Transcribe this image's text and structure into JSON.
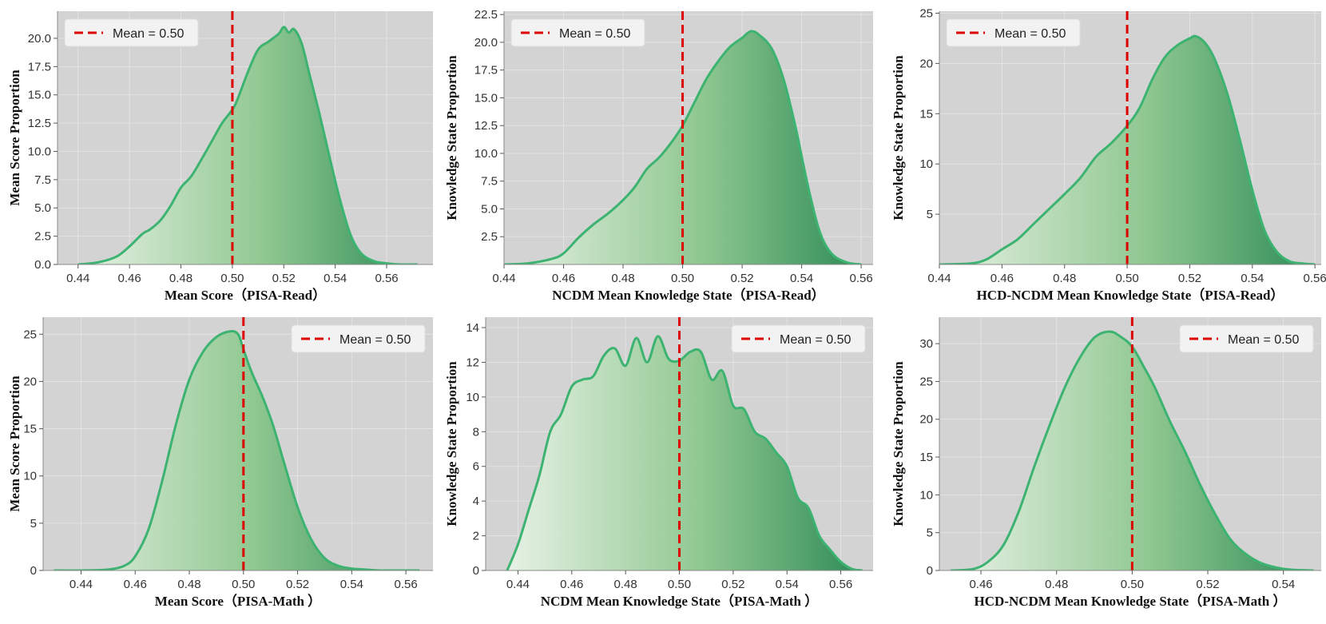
{
  "colors": {
    "panel_bg": "#d3d3d3",
    "grid": "#e6e6e6",
    "fill_light": "#e8f3e6",
    "fill_dark": "#2e8b57",
    "curve": "#3cb371",
    "mean_line": "#dd0000"
  },
  "chart_data": [
    {
      "type": "area",
      "xlabel": "Mean Score（PISA-Read）",
      "ylabel": "Mean Score Proportion",
      "xlim": [
        0.432,
        0.578
      ],
      "ylim": [
        0,
        22.4
      ],
      "xticks": [
        "0.44",
        "0.46",
        "0.48",
        "0.50",
        "0.52",
        "0.54",
        "0.56"
      ],
      "yticks": [
        "0.0",
        "2.5",
        "5.0",
        "7.5",
        "10.0",
        "12.5",
        "15.0",
        "17.5",
        "20.0"
      ],
      "legend": {
        "label": "Mean = 0.50",
        "position": "top-left"
      },
      "mean": 0.5,
      "grid": true,
      "x": [
        0.44,
        0.448,
        0.455,
        0.46,
        0.465,
        0.468,
        0.472,
        0.476,
        0.48,
        0.484,
        0.488,
        0.492,
        0.496,
        0.5,
        0.502,
        0.506,
        0.51,
        0.514,
        0.518,
        0.52,
        0.522,
        0.524,
        0.527,
        0.53,
        0.534,
        0.538,
        0.542,
        0.546,
        0.55,
        0.555,
        0.56,
        0.565,
        0.572
      ],
      "y": [
        0.0,
        0.2,
        0.7,
        1.6,
        2.7,
        3.1,
        3.9,
        5.2,
        6.8,
        7.8,
        9.3,
        10.9,
        12.5,
        13.7,
        14.6,
        17.0,
        19.0,
        19.7,
        20.4,
        21.0,
        20.5,
        20.8,
        19.5,
        16.8,
        13.2,
        9.3,
        5.6,
        2.6,
        1.0,
        0.3,
        0.1,
        0.0,
        0.0
      ]
    },
    {
      "type": "area",
      "xlabel": "NCDM Mean Knowledge State（PISA-Read）",
      "ylabel": "Knowledge State Proportion",
      "xlim": [
        0.44,
        0.564
      ],
      "ylim": [
        0,
        22.8
      ],
      "xticks": [
        "0.44",
        "0.46",
        "0.48",
        "0.50",
        "0.52",
        "0.54",
        "0.56"
      ],
      "yticks": [
        "2.5",
        "5.0",
        "7.5",
        "10.0",
        "12.5",
        "15.0",
        "17.5",
        "20.0",
        "22.5"
      ],
      "legend": {
        "label": "Mean = 0.50",
        "position": "top-left"
      },
      "mean": 0.5,
      "grid": true,
      "x": [
        0.44,
        0.448,
        0.456,
        0.46,
        0.465,
        0.47,
        0.475,
        0.48,
        0.484,
        0.488,
        0.492,
        0.496,
        0.5,
        0.504,
        0.508,
        0.512,
        0.516,
        0.52,
        0.523,
        0.526,
        0.53,
        0.534,
        0.538,
        0.542,
        0.546,
        0.55,
        0.555,
        0.56
      ],
      "y": [
        0.0,
        0.1,
        0.5,
        1.0,
        2.4,
        3.6,
        4.6,
        5.8,
        7.0,
        8.6,
        9.6,
        10.9,
        12.5,
        14.6,
        16.7,
        18.3,
        19.6,
        20.4,
        21.0,
        20.6,
        19.4,
        16.6,
        12.3,
        7.2,
        3.0,
        1.0,
        0.2,
        0.0
      ]
    },
    {
      "type": "area",
      "xlabel": "HCD-NCDM Mean Knowledge State（PISA-Read）",
      "ylabel": "Knowledge State Proportion",
      "xlim": [
        0.44,
        0.562
      ],
      "ylim": [
        0,
        25.2
      ],
      "xticks": [
        "0.44",
        "0.46",
        "0.48",
        "0.50",
        "0.52",
        "0.54",
        "0.56"
      ],
      "yticks": [
        "5",
        "10",
        "15",
        "20",
        "25"
      ],
      "legend": {
        "label": "Mean = 0.50",
        "position": "top-left"
      },
      "mean": 0.5,
      "grid": true,
      "x": [
        0.44,
        0.45,
        0.455,
        0.46,
        0.465,
        0.47,
        0.475,
        0.48,
        0.485,
        0.49,
        0.495,
        0.5,
        0.504,
        0.508,
        0.512,
        0.516,
        0.52,
        0.522,
        0.525,
        0.528,
        0.532,
        0.536,
        0.54,
        0.544,
        0.548,
        0.552,
        0.556,
        0.56
      ],
      "y": [
        0.0,
        0.1,
        0.5,
        1.5,
        2.5,
        4.0,
        5.5,
        7.0,
        8.6,
        10.7,
        12.1,
        13.8,
        15.6,
        18.4,
        20.6,
        21.8,
        22.5,
        22.7,
        22.0,
        20.4,
        17.0,
        12.4,
        7.4,
        3.3,
        1.2,
        0.3,
        0.1,
        0.0
      ]
    },
    {
      "type": "area",
      "xlabel": "Mean Score（PISA-Math ）",
      "ylabel": "Mean Score Proportion",
      "xlim": [
        0.426,
        0.57
      ],
      "ylim": [
        0,
        26.8
      ],
      "xticks": [
        "0.44",
        "0.46",
        "0.48",
        "0.50",
        "0.52",
        "0.54",
        "0.56"
      ],
      "yticks": [
        "0",
        "5",
        "10",
        "15",
        "20",
        "25"
      ],
      "legend": {
        "label": "Mean = 0.50",
        "position": "top-right"
      },
      "mean": 0.5,
      "grid": true,
      "x": [
        0.43,
        0.44,
        0.45,
        0.456,
        0.46,
        0.465,
        0.47,
        0.475,
        0.48,
        0.485,
        0.49,
        0.495,
        0.498,
        0.5,
        0.503,
        0.507,
        0.511,
        0.515,
        0.52,
        0.525,
        0.53,
        0.535,
        0.54,
        0.545,
        0.55,
        0.555,
        0.565
      ],
      "y": [
        0.0,
        0.0,
        0.1,
        0.5,
        1.5,
        4.4,
        9.5,
        15.4,
        20.2,
        23.1,
        24.7,
        25.3,
        25.0,
        23.4,
        21.0,
        18.4,
        15.3,
        11.4,
        6.7,
        3.3,
        1.3,
        0.5,
        0.2,
        0.1,
        0.0,
        0.0,
        0.0
      ]
    },
    {
      "type": "area",
      "xlabel": "NCDM Mean Knowledge State（PISA-Math ）",
      "ylabel": "Knowledge State Proportion",
      "xlim": [
        0.428,
        0.572
      ],
      "ylim": [
        0,
        14.6
      ],
      "xticks": [
        "0.44",
        "0.46",
        "0.48",
        "0.50",
        "0.52",
        "0.54",
        "0.56"
      ],
      "yticks": [
        "0",
        "2",
        "4",
        "6",
        "8",
        "10",
        "12",
        "14"
      ],
      "legend": {
        "label": "Mean = 0.50",
        "position": "top-right"
      },
      "mean": 0.5,
      "grid": true,
      "x": [
        0.436,
        0.44,
        0.444,
        0.448,
        0.452,
        0.456,
        0.46,
        0.464,
        0.468,
        0.472,
        0.476,
        0.48,
        0.484,
        0.488,
        0.492,
        0.496,
        0.5,
        0.504,
        0.508,
        0.512,
        0.516,
        0.52,
        0.524,
        0.528,
        0.532,
        0.536,
        0.54,
        0.544,
        0.548,
        0.552,
        0.556,
        0.56,
        0.564,
        0.568
      ],
      "y": [
        0.0,
        1.5,
        3.5,
        5.5,
        8.0,
        9.0,
        10.6,
        11.0,
        11.2,
        12.4,
        12.8,
        11.8,
        13.4,
        12.0,
        13.5,
        12.2,
        12.1,
        12.6,
        12.6,
        11.0,
        11.5,
        9.5,
        9.3,
        8.0,
        7.6,
        6.8,
        6.0,
        4.2,
        3.6,
        2.0,
        1.2,
        0.5,
        0.1,
        0.0
      ]
    },
    {
      "type": "area",
      "xlabel": "HCD-NCDM Mean Knowledge State（PISA-Math ）",
      "ylabel": "Knowledge State Proportion",
      "xlim": [
        0.449,
        0.55
      ],
      "ylim": [
        0,
        33.5
      ],
      "xticks": [
        "0.46",
        "0.48",
        "0.50",
        "0.52",
        "0.54"
      ],
      "yticks": [
        "0",
        "5",
        "10",
        "15",
        "20",
        "25",
        "30"
      ],
      "legend": {
        "label": "Mean = 0.50",
        "position": "top-right"
      },
      "mean": 0.5,
      "grid": true,
      "x": [
        0.452,
        0.458,
        0.462,
        0.466,
        0.47,
        0.474,
        0.478,
        0.482,
        0.486,
        0.49,
        0.494,
        0.497,
        0.5,
        0.503,
        0.506,
        0.51,
        0.514,
        0.518,
        0.522,
        0.526,
        0.53,
        0.534,
        0.538,
        0.542,
        0.548
      ],
      "y": [
        0.0,
        0.2,
        1.2,
        3.4,
        7.8,
        13.6,
        19.0,
        24.0,
        28.0,
        30.8,
        31.6,
        30.9,
        29.6,
        27.0,
        24.2,
        19.7,
        15.7,
        11.3,
        7.4,
        4.1,
        2.2,
        1.0,
        0.4,
        0.1,
        0.0
      ]
    }
  ]
}
